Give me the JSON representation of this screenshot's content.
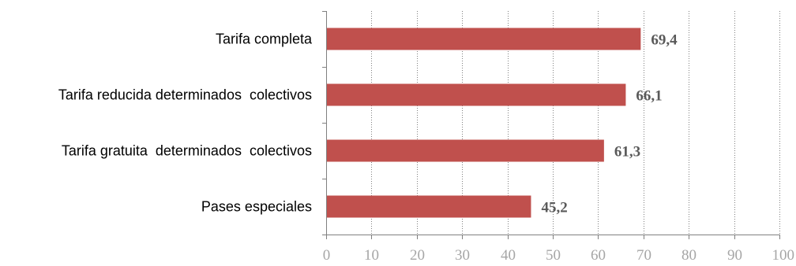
{
  "chart_data": {
    "type": "bar",
    "orientation": "horizontal",
    "categories": [
      "Tarifa completa",
      "Tarifa reducida determinados  colectivos",
      "Tarifa gratuita  determinados  colectivos",
      "Pases especiales"
    ],
    "values": [
      69.4,
      66.1,
      61.3,
      45.2
    ],
    "data_labels": [
      "69,4",
      "66,1",
      "61,3",
      "45,2"
    ],
    "xlim": [
      0,
      100
    ],
    "x_ticks": [
      0,
      10,
      20,
      30,
      40,
      50,
      60,
      70,
      80,
      90,
      100
    ],
    "x_tick_labels": [
      "0",
      "10",
      "20",
      "30",
      "40",
      "50",
      "60",
      "70",
      "80",
      "90",
      "100"
    ],
    "grid": "vertical-dotted",
    "legend": "none",
    "title": "",
    "xlabel": "",
    "ylabel": "",
    "colors": {
      "bar": "#c0504d",
      "axis": "#808080",
      "grid": "#7f7f7f",
      "tick_text": "#a6a6a6",
      "data_label_text": "#595959"
    }
  }
}
